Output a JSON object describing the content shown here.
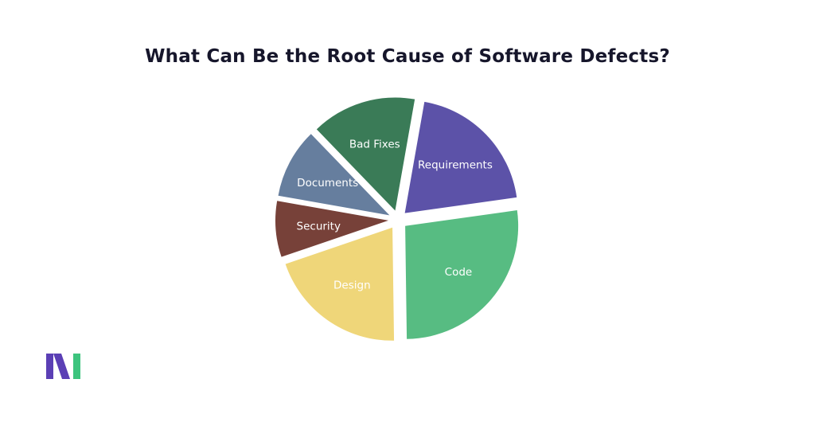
{
  "title": "What Can Be the Root Cause of Software Defects?",
  "logo": {
    "name": "brand-logo",
    "colors": [
      "#5b3fb5",
      "#3dc47e"
    ]
  },
  "chart_data": {
    "type": "pie",
    "title": "What Can Be the Root Cause of Software Defects?",
    "legend": "none",
    "slices": [
      {
        "label": "Requirements",
        "value": 20,
        "color": "#5c52a8",
        "exploded": true
      },
      {
        "label": "Code",
        "value": 27,
        "color": "#57bc82",
        "exploded": true
      },
      {
        "label": "Design",
        "value": 20,
        "color": "#efd679",
        "exploded": true
      },
      {
        "label": "Security",
        "value": 8,
        "color": "#774139",
        "exploded": true
      },
      {
        "label": "Documents",
        "value": 10,
        "color": "#667e9e",
        "exploded": true
      },
      {
        "label": "Bad Fixes",
        "value": 15,
        "color": "#3a7b57",
        "exploded": true
      }
    ]
  }
}
